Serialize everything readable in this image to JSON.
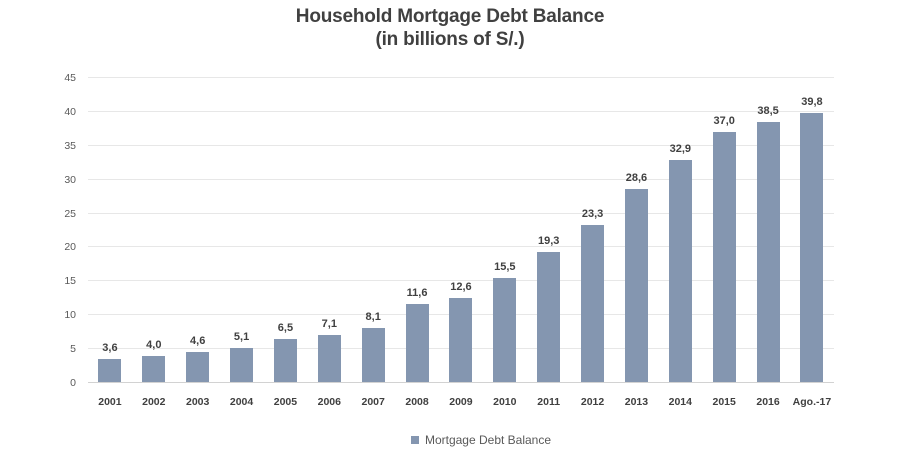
{
  "chart_data": {
    "type": "bar",
    "title": "Household Mortgage Debt Balance",
    "subtitle": "(in billions of S/.)",
    "categories": [
      "2001",
      "2002",
      "2003",
      "2004",
      "2005",
      "2006",
      "2007",
      "2008",
      "2009",
      "2010",
      "2011",
      "2012",
      "2013",
      "2014",
      "2015",
      "2016",
      "Ago.-17"
    ],
    "values": [
      3.6,
      4.0,
      4.6,
      5.1,
      6.5,
      7.1,
      8.1,
      11.6,
      12.6,
      15.5,
      19.3,
      23.3,
      28.6,
      32.9,
      37.0,
      38.5,
      39.8
    ],
    "value_labels": [
      "3,6",
      "4,0",
      "4,6",
      "5,1",
      "6,5",
      "7,1",
      "8,1",
      "11,6",
      "12,6",
      "15,5",
      "19,3",
      "23,3",
      "28,6",
      "32,9",
      "37,0",
      "38,5",
      "39,8"
    ],
    "series_name": "Mortgage Debt Balance",
    "xlabel": "",
    "ylabel": "",
    "ylim": [
      0,
      45
    ],
    "yticks": [
      0,
      5,
      10,
      15,
      20,
      25,
      30,
      35,
      40,
      45
    ],
    "grid": true,
    "legend": {
      "position": "bottom",
      "label": "Mortgage Debt Balance"
    },
    "colors": {
      "bar": "#8496B0",
      "gridline": "#E7E7E7",
      "axis_line": "#D2D2D2",
      "title_text": "#404040",
      "tick_text": "#595959",
      "data_label_text": "#404040",
      "background": "#FFFFFF"
    }
  }
}
